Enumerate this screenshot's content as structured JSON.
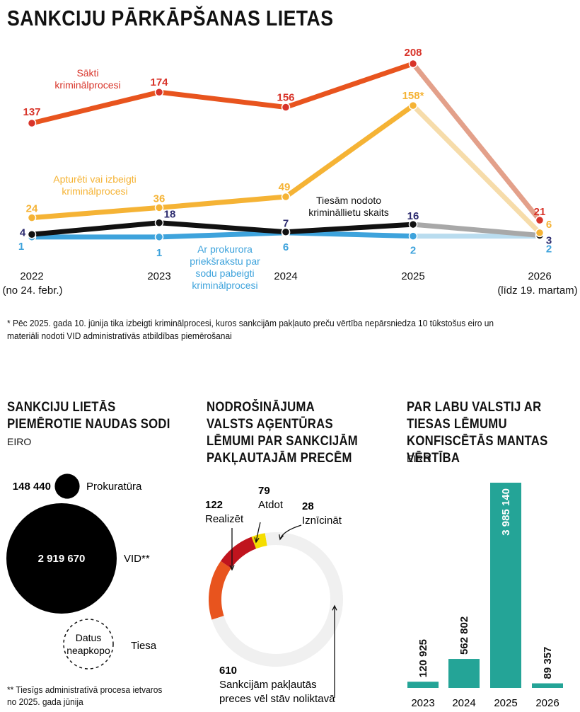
{
  "title": "SANKCIJU PĀRKĀPŠANAS LIETAS",
  "footnote": "* Pēc 2025. gada 10. jūnija tika izbeigti kriminālprocesi, kuros sankcijām pakļauto preču vērtība nepārsniedza 10 tūkstošus eiro un materiāli nodoti VID administratīvās atbildības piemērošanai",
  "colors": {
    "started": "#e8541e",
    "suspended": "#f5b335",
    "court": "#111111",
    "prosecutor": "#3ea3dc",
    "label_red": "#d8342a",
    "label_court": "#2b2a6e",
    "teal": "#24a497",
    "donut_red": "#c0141e",
    "donut_yellow": "#f5dd00",
    "donut_gray": "#f0f0f0"
  },
  "chart_data": [
    {
      "type": "line",
      "title": "SANKCIJU PĀRKĀPŠANAS LIETAS",
      "x_labels": [
        "2022",
        "2023",
        "2024",
        "2025",
        "2026"
      ],
      "x_sublabels": [
        "(no 24. febr.)",
        "",
        "",
        "",
        "(līdz 19. martam)"
      ],
      "ylim": [
        0,
        215
      ],
      "series": [
        {
          "name": "Sākti kriminālprocesi",
          "values": [
            137,
            174,
            156,
            208,
            21
          ],
          "value_labels": [
            "137",
            "174",
            "156",
            "208",
            "21"
          ]
        },
        {
          "name": "Apturēti vai izbeigti kriminālprocesi",
          "values": [
            24,
            36,
            49,
            158,
            6
          ],
          "value_labels": [
            "24",
            "36",
            "49",
            "158*",
            "6"
          ]
        },
        {
          "name": "Tiesām nodoto krimināllietu skaits",
          "values": [
            4,
            18,
            7,
            16,
            3
          ],
          "value_labels": [
            "4",
            "18",
            "7",
            "16",
            "3"
          ]
        },
        {
          "name": "Ar prokurora priekšrakstu par sodu pabeigti kriminālprocesi",
          "values": [
            1,
            1,
            6,
            2,
            2
          ],
          "value_labels": [
            "1",
            "1",
            "6",
            "2",
            "2"
          ]
        }
      ]
    },
    {
      "type": "bubble",
      "title": "SANKCIJU LIETĀS PIEMĒROTIE NAUDAS SODI",
      "unit": "EIRO",
      "items": [
        {
          "name": "Prokuratūra",
          "value": 148440,
          "value_label": "148 440"
        },
        {
          "name": "VID**",
          "value": 2919670,
          "value_label": "2 919 670"
        },
        {
          "name": "Tiesa",
          "value": null,
          "value_label": "Datus neapkopo"
        }
      ],
      "note": "** Tiesīgs administratīvā procesa ietvaros no 2025. gada jūnija"
    },
    {
      "type": "pie",
      "title": "NODROŠINĀJUMA VALSTS AĢENTŪRAS LĒMUMI PAR SANKCIJĀM PAKĻAUTAJĀM PRECĒM",
      "slices": [
        {
          "name": "Realizēt",
          "value": 122
        },
        {
          "name": "Atdot",
          "value": 79
        },
        {
          "name": "Iznīcināt",
          "value": 28
        },
        {
          "name": "Sankcijām pakļautās preces vēl stāv noliktavā",
          "value": 610
        }
      ]
    },
    {
      "type": "bar",
      "title": "PAR LABU VALSTIJ AR TIESAS LĒMUMU KONFISCĒTĀS MANTAS VĒRTĪBA",
      "unit": "EIRO",
      "categories": [
        "2023",
        "2024",
        "2025",
        "2026"
      ],
      "values": [
        120925,
        562802,
        3985140,
        89357
      ],
      "value_labels": [
        "120 925",
        "562 802",
        "3 985 140",
        "89 357"
      ],
      "ylim": [
        0,
        3985140
      ]
    }
  ]
}
